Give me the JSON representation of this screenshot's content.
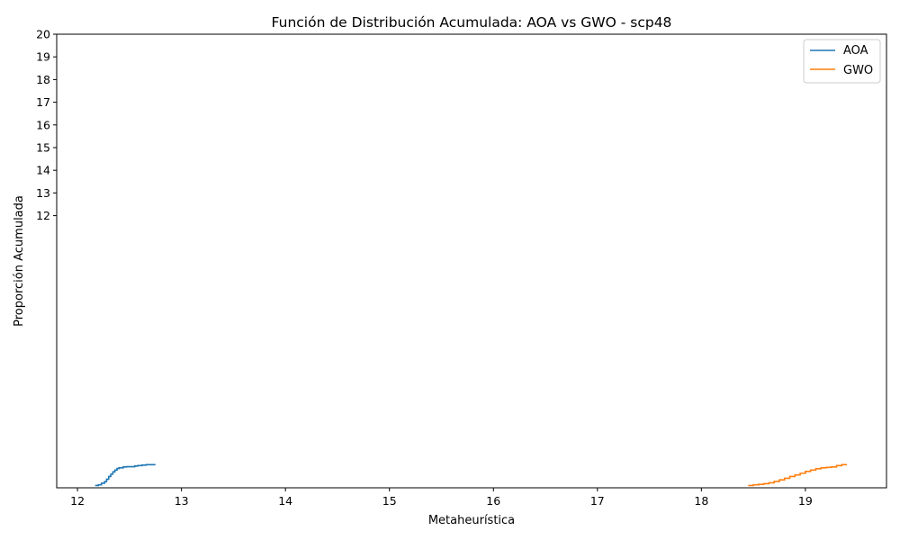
{
  "chart_data": {
    "type": "line",
    "title": "Función de Distribución Acumulada: AOA vs GWO - scp48",
    "xlabel": "Metaheurística",
    "ylabel": "Proporción Acumulada",
    "xlim": [
      11.8,
      19.78
    ],
    "ylim": [
      0,
      20
    ],
    "x_ticks": [
      "12",
      "13",
      "14",
      "15",
      "16",
      "17",
      "18",
      "19"
    ],
    "y_ticks": [
      "12",
      "13",
      "14",
      "15",
      "16",
      "17",
      "18",
      "19",
      "20"
    ],
    "legend": {
      "position": "top-right",
      "entries": [
        "AOA",
        "GWO"
      ]
    },
    "grid": false,
    "series": [
      {
        "name": "AOA",
        "color": "#1f77b4",
        "x": [
          12.17,
          12.2,
          12.23,
          12.26,
          12.28,
          12.3,
          12.32,
          12.34,
          12.36,
          12.38,
          12.4,
          12.44,
          12.47,
          12.52,
          12.55,
          12.58,
          12.62,
          12.66,
          12.7,
          12.75
        ],
        "y": [
          0.1,
          0.13,
          0.2,
          0.27,
          0.38,
          0.5,
          0.6,
          0.7,
          0.78,
          0.85,
          0.88,
          0.92,
          0.93,
          0.93,
          0.96,
          0.98,
          1.0,
          1.02,
          1.02,
          1.02
        ]
      },
      {
        "name": "GWO",
        "color": "#ff7f0e",
        "x": [
          18.45,
          18.5,
          18.55,
          18.6,
          18.65,
          18.7,
          18.75,
          18.8,
          18.85,
          18.9,
          18.95,
          19.0,
          19.05,
          19.1,
          19.15,
          19.2,
          19.25,
          19.3,
          19.35,
          19.4
        ],
        "y": [
          0.1,
          0.13,
          0.15,
          0.18,
          0.22,
          0.28,
          0.35,
          0.42,
          0.5,
          0.57,
          0.64,
          0.72,
          0.78,
          0.84,
          0.88,
          0.9,
          0.92,
          0.98,
          1.02,
          1.02
        ]
      }
    ]
  }
}
